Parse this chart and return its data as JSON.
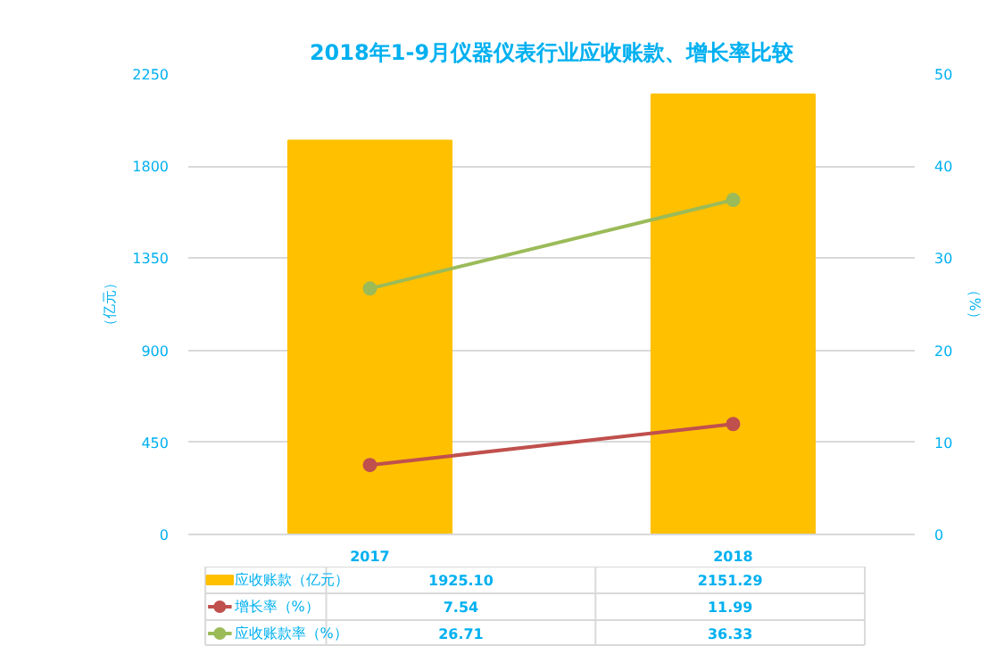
{
  "chart_data": {
    "type": "bar",
    "title": "2018年1-9月仪器仪表行业应收账款、增长率比较",
    "ylabel": "（亿元）",
    "y2label": "（%）",
    "categories": [
      "2017",
      "2018"
    ],
    "series": [
      {
        "name": "应收账款（亿元）",
        "color": "#ffc000",
        "values": [
          1925.1,
          2151.29
        ],
        "value_labels": [
          "1925.10",
          "2151.29"
        ]
      },
      {
        "name": "增长率（%）",
        "type": "line",
        "axis": "y2",
        "color": "#c0504d",
        "values": [
          7.54,
          11.99
        ],
        "value_labels": [
          "7.54",
          "11.99"
        ]
      },
      {
        "name": "应收账款率（%）",
        "type": "line",
        "axis": "y2",
        "color": "#9bbb59",
        "values": [
          26.71,
          36.33
        ],
        "value_labels": [
          "26.71",
          "36.33"
        ]
      }
    ],
    "ylim": [
      0,
      2250
    ],
    "yticks": [
      0,
      450,
      900,
      1350,
      1800,
      2250
    ],
    "y2lim": [
      0,
      50
    ],
    "y2ticks": [
      0,
      10,
      20,
      30,
      40,
      50
    ],
    "grid": "y",
    "legend": "bottom",
    "marker": "circle",
    "line_style": "solid"
  }
}
